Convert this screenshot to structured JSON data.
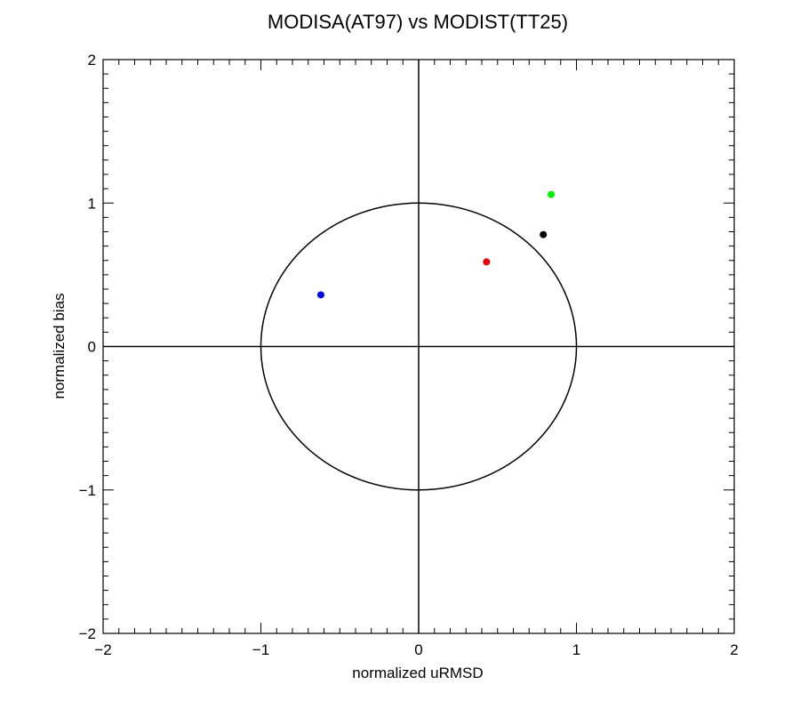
{
  "chart_data": {
    "type": "scatter",
    "title": "MODISA(AT97) vs MODIST(TT25)",
    "xlabel": "normalized uRMSD",
    "ylabel": "normalized bias",
    "xlim": [
      -2,
      2
    ],
    "ylim": [
      -2,
      2
    ],
    "x_ticks": [
      -2,
      -1,
      0,
      1,
      2
    ],
    "y_ticks": [
      -2,
      -1,
      0,
      1,
      2
    ],
    "x_tick_labels": [
      "−2",
      "−1",
      "0",
      "1",
      "2"
    ],
    "y_tick_labels": [
      "−2",
      "−1",
      "0",
      "1",
      "2"
    ],
    "minor_tick_step": 0.1,
    "grid": false,
    "reference_lines": {
      "x": 0,
      "y": 0
    },
    "reference_circle": {
      "center": [
        0,
        0
      ],
      "radius": 1
    },
    "points": [
      {
        "x": 0.84,
        "y": 1.06,
        "color": "#00ee00"
      },
      {
        "x": 0.79,
        "y": 0.78,
        "color": "#000000"
      },
      {
        "x": 0.43,
        "y": 0.59,
        "color": "#ee0000"
      },
      {
        "x": -0.62,
        "y": 0.36,
        "color": "#0000ee"
      }
    ]
  }
}
